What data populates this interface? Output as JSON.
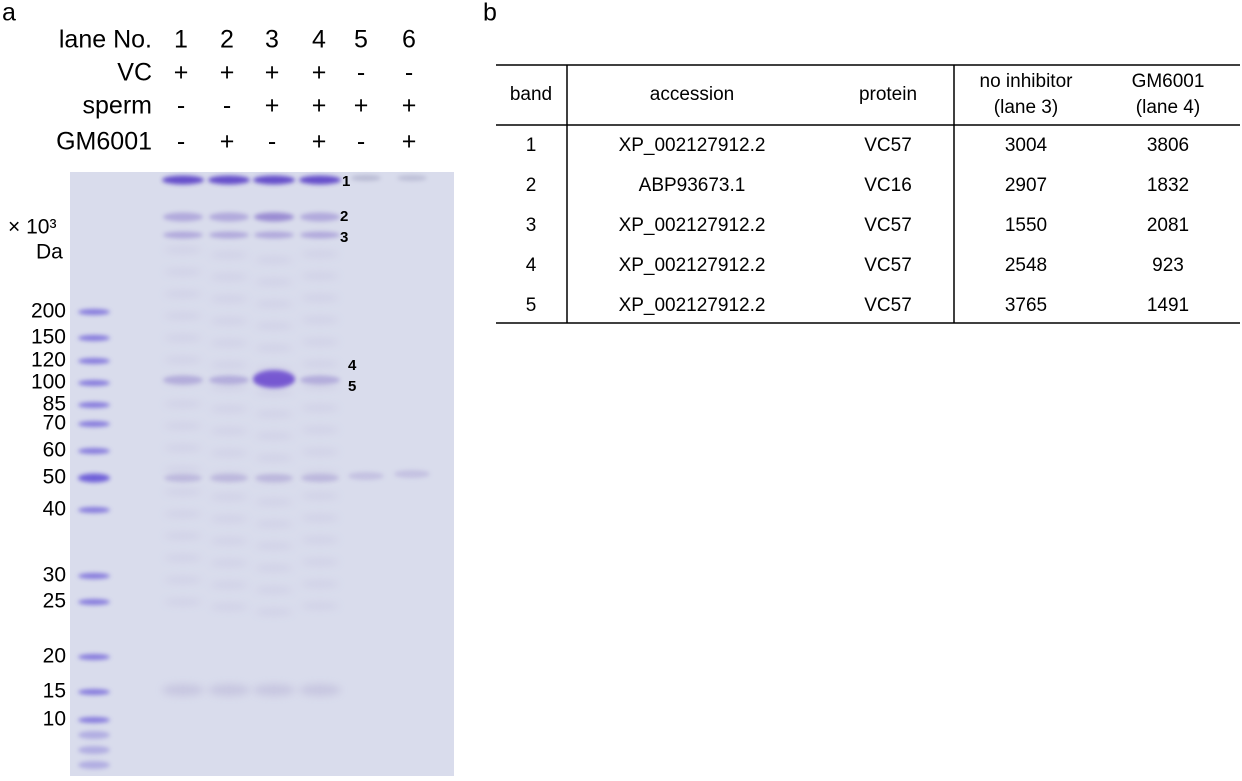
{
  "panel_labels": [
    "a",
    "b"
  ],
  "gel": {
    "header_rows": [
      {
        "label": "lane No.",
        "cells": [
          "1",
          "2",
          "3",
          "4",
          "5",
          "6"
        ]
      },
      {
        "label": "VC",
        "cells": [
          "+",
          "+",
          "+",
          "+",
          "-",
          "-"
        ]
      },
      {
        "label": "sperm",
        "cells": [
          "-",
          "-",
          "+",
          "+",
          "+",
          "+"
        ]
      },
      {
        "label": "GM6001",
        "cells": [
          "-",
          "+",
          "-",
          "+",
          "-",
          "+"
        ]
      }
    ],
    "unit": [
      "× 10³",
      "Da"
    ],
    "markers": [
      "200",
      "150",
      "120",
      "100",
      "85",
      "70",
      "60",
      "50",
      "40",
      "30",
      "25",
      "20",
      "15",
      "10"
    ],
    "band_labels": [
      "1",
      "2",
      "3",
      "4",
      "5"
    ]
  },
  "table": {
    "header": [
      [
        "band"
      ],
      [
        "accession"
      ],
      [
        "protein"
      ],
      [
        "no inhibitor",
        "(lane 3)"
      ],
      [
        "GM6001",
        "(lane 4)"
      ]
    ],
    "rows": [
      [
        "1",
        "XP_002127912.2",
        "VC57",
        "3004",
        "3806"
      ],
      [
        "2",
        "ABP93673.1",
        "VC16",
        "2907",
        "1832"
      ],
      [
        "3",
        "XP_002127912.2",
        "VC57",
        "1550",
        "2081"
      ],
      [
        "4",
        "XP_002127912.2",
        "VC57",
        "2548",
        "923"
      ],
      [
        "5",
        "XP_002127912.2",
        "VC57",
        "3765",
        "1491"
      ]
    ]
  }
}
